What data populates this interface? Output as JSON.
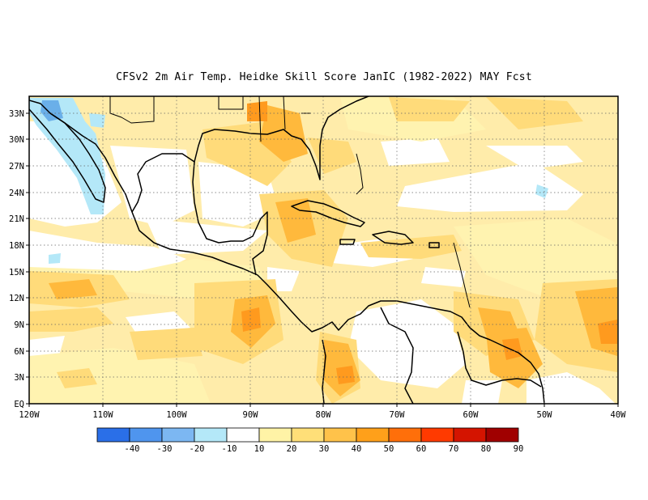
{
  "title": "CFSv2  2m Air Temp. Heidke Skill Score JanIC (1982-2022) MAY Fcst",
  "map": {
    "lat_labels": [
      "33N",
      "30N",
      "27N",
      "24N",
      "21N",
      "18N",
      "15N",
      "12N",
      "9N",
      "6N",
      "3N",
      "EQ"
    ],
    "lon_labels": [
      "120W",
      "110W",
      "100W",
      "90W",
      "80W",
      "70W",
      "60W",
      "50W",
      "40W"
    ],
    "extent": {
      "lon": [
        -120,
        -40
      ],
      "lat": [
        0,
        35
      ]
    },
    "gridlines": "dotted"
  },
  "colorbar": {
    "ticks": [
      "-40",
      "-30",
      "-20",
      "-10",
      "10",
      "20",
      "30",
      "40",
      "50",
      "60",
      "70",
      "80",
      "90"
    ],
    "colors": [
      "#2a6fe8",
      "#4f95ee",
      "#7cb7f2",
      "#b4e8f8",
      "#ffffff",
      "#fff3a6",
      "#ffdf78",
      "#ffc24a",
      "#ffa01a",
      "#ff6f0a",
      "#ff3a00",
      "#d41400",
      "#a00000"
    ]
  },
  "fill_colors": {
    "ocean_base": "#ffecaa",
    "light": "#fff3b0",
    "mid": "#ffdb7a",
    "orange": "#ffb93c",
    "deep": "#ff9a1e",
    "white": "#ffffff",
    "cyan": "#b4e8f8",
    "blue": "#6aafe9"
  }
}
